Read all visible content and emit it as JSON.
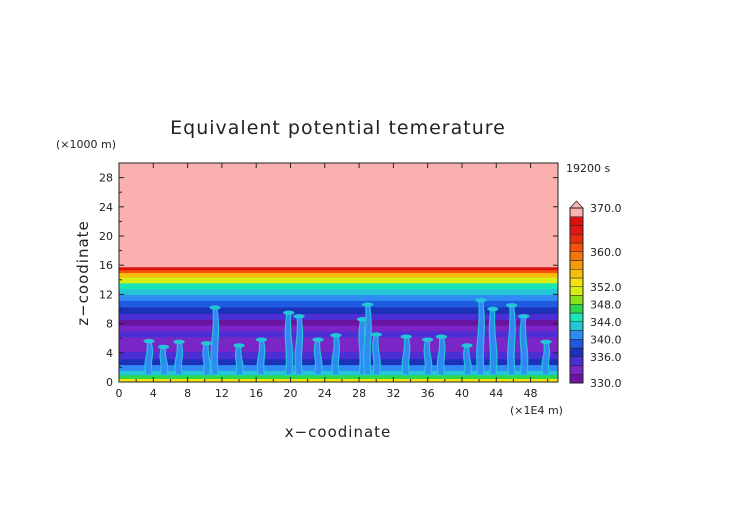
{
  "chart_data": {
    "type": "heatmap",
    "title": "Equivalent potential temerature",
    "xlabel": "x−coodinate",
    "ylabel": "z−coodinate",
    "x_unit": "(×1E4 m)",
    "y_unit": "(×1000 m)",
    "time_label": "19200 s",
    "xlim": [
      0,
      51.2
    ],
    "ylim": [
      0,
      30
    ],
    "x_ticks": [
      "0",
      "4",
      "8",
      "12",
      "16",
      "20",
      "24",
      "28",
      "32",
      "36",
      "40",
      "44",
      "48"
    ],
    "y_ticks": [
      "0",
      "4",
      "8",
      "12",
      "16",
      "20",
      "24",
      "28"
    ],
    "colorbar": {
      "levels": [
        330,
        332,
        334,
        336,
        338,
        340,
        342,
        344,
        346,
        348,
        350,
        352,
        354,
        356,
        358,
        360,
        362,
        364,
        366,
        368,
        370
      ],
      "labels": [
        "330.0",
        "336.0",
        "340.0",
        "344.0",
        "348.0",
        "352.0",
        "360.0",
        "370.0"
      ],
      "colors": [
        "#6a14a0",
        "#7a26c6",
        "#4b2fd4",
        "#1b31b8",
        "#1e5be0",
        "#2f8cf5",
        "#25c5d8",
        "#19e6b4",
        "#2ad84a",
        "#8ce21a",
        "#d6ee16",
        "#f5e20e",
        "#f6be0c",
        "#f59a0b",
        "#f4760b",
        "#f2520a",
        "#ec2b0c",
        "#e41515",
        "#dd1010",
        "#fbb0b0"
      ],
      "extend": "max"
    },
    "vertical_profile": [
      {
        "z": 0.0,
        "theta_e": 352
      },
      {
        "z": 0.5,
        "theta_e": 347
      },
      {
        "z": 1.0,
        "theta_e": 343
      },
      {
        "z": 1.6,
        "theta_e": 340
      },
      {
        "z": 2.4,
        "theta_e": 337
      },
      {
        "z": 3.2,
        "theta_e": 335
      },
      {
        "z": 4.2,
        "theta_e": 333
      },
      {
        "z": 5.2,
        "theta_e": 333
      },
      {
        "z": 6.2,
        "theta_e": 334
      },
      {
        "z": 7.0,
        "theta_e": 332
      },
      {
        "z": 7.8,
        "theta_e": 331
      },
      {
        "z": 8.6,
        "theta_e": 334
      },
      {
        "z": 9.4,
        "theta_e": 337
      },
      {
        "z": 10.3,
        "theta_e": 339
      },
      {
        "z": 11.2,
        "theta_e": 341
      },
      {
        "z": 12.0,
        "theta_e": 343
      },
      {
        "z": 12.8,
        "theta_e": 345
      },
      {
        "z": 13.6,
        "theta_e": 350
      },
      {
        "z": 14.4,
        "theta_e": 354
      },
      {
        "z": 15.0,
        "theta_e": 360
      },
      {
        "z": 15.4,
        "theta_e": 366
      },
      {
        "z": 15.8,
        "theta_e": 371
      },
      {
        "z": 30.0,
        "theta_e": 371
      }
    ],
    "convective_plumes": [
      {
        "x": 3.5,
        "top": 5.6
      },
      {
        "x": 5.2,
        "top": 4.8
      },
      {
        "x": 7.0,
        "top": 5.5
      },
      {
        "x": 10.2,
        "top": 5.3
      },
      {
        "x": 11.2,
        "top": 10.2
      },
      {
        "x": 14.0,
        "top": 5.0
      },
      {
        "x": 16.6,
        "top": 5.8
      },
      {
        "x": 19.8,
        "top": 9.5
      },
      {
        "x": 21.0,
        "top": 9.0
      },
      {
        "x": 23.2,
        "top": 5.8
      },
      {
        "x": 25.3,
        "top": 6.4
      },
      {
        "x": 28.4,
        "top": 8.6
      },
      {
        "x": 29.0,
        "top": 10.6
      },
      {
        "x": 30.0,
        "top": 6.5
      },
      {
        "x": 33.5,
        "top": 6.2
      },
      {
        "x": 36.0,
        "top": 5.8
      },
      {
        "x": 37.6,
        "top": 6.2
      },
      {
        "x": 40.6,
        "top": 5.0
      },
      {
        "x": 42.2,
        "top": 11.2
      },
      {
        "x": 43.6,
        "top": 10.0
      },
      {
        "x": 45.8,
        "top": 10.5
      },
      {
        "x": 47.2,
        "top": 9.0
      },
      {
        "x": 49.8,
        "top": 5.5
      }
    ]
  }
}
